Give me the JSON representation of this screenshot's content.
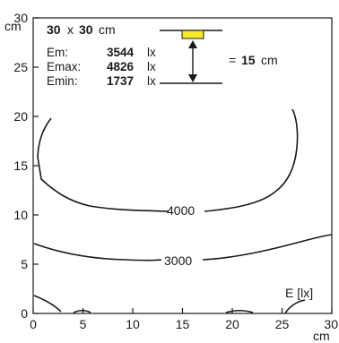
{
  "header": {
    "size_value_a": "30",
    "size_sep": "x",
    "size_value_b": "30",
    "size_unit": "cm"
  },
  "stats": [
    {
      "label": "Em:",
      "value": "3544",
      "unit": "lx"
    },
    {
      "label": "Emax:",
      "value": "4826",
      "unit": "lx"
    },
    {
      "label": "Emin:",
      "value": "1737",
      "unit": "lx"
    }
  ],
  "distance": {
    "prefix": "=",
    "value": "15",
    "unit": "cm"
  },
  "axes": {
    "x_ticks": [
      "0",
      "5",
      "10",
      "15",
      "20",
      "25",
      "30"
    ],
    "x_unit": "cm",
    "y_ticks": [
      "0",
      "5",
      "10",
      "15",
      "20",
      "25",
      "30"
    ],
    "y_unit": "cm",
    "xlim": [
      0,
      30
    ],
    "ylim": [
      0,
      30
    ]
  },
  "contour_labels": {
    "c4000": "4000",
    "c3000": "3000"
  },
  "quantity_label": "E [lx]",
  "colors": {
    "lamp": "#f2ea2a",
    "line": "#1a1a1a"
  }
}
